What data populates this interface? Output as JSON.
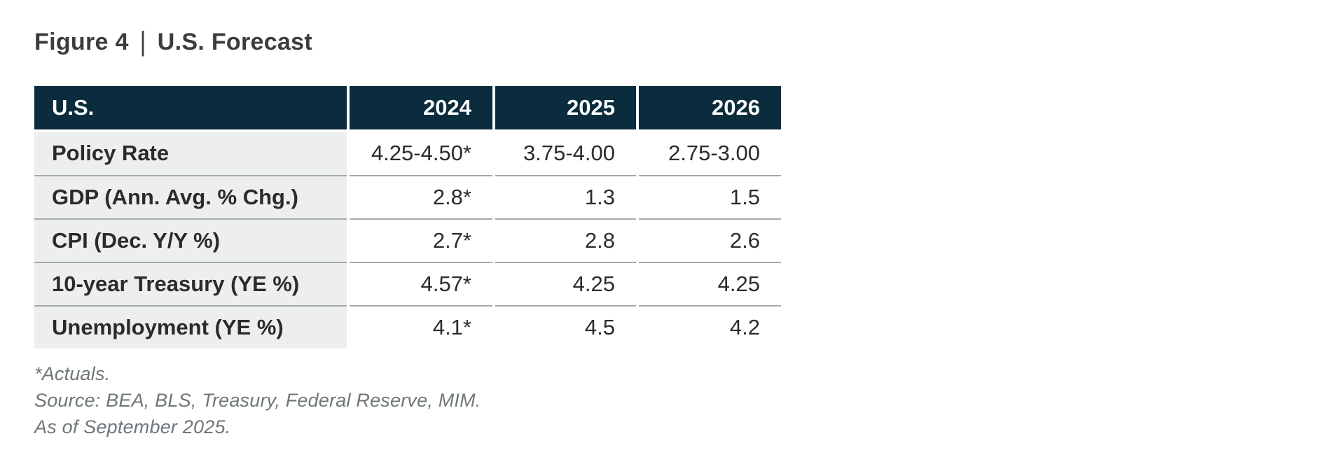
{
  "figure": {
    "label": "Figure 4",
    "separator": "|",
    "title": "U.S. Forecast"
  },
  "table": {
    "header": {
      "region": "U.S.",
      "years": [
        "2024",
        "2025",
        "2026"
      ]
    },
    "rows": [
      {
        "label": "Policy Rate",
        "values": [
          "4.25-4.50*",
          "3.75-4.00",
          "2.75-3.00"
        ]
      },
      {
        "label": "GDP (Ann. Avg. % Chg.)",
        "values": [
          "2.8*",
          "1.3",
          "1.5"
        ]
      },
      {
        "label": "CPI (Dec. Y/Y %)",
        "values": [
          "2.7*",
          "2.8",
          "2.6"
        ]
      },
      {
        "label": "10-year Treasury (YE %)",
        "values": [
          "4.57*",
          "4.25",
          "4.25"
        ]
      },
      {
        "label": "Unemployment (YE %)",
        "values": [
          "4.1*",
          "4.5",
          "4.2"
        ]
      }
    ]
  },
  "footnotes": {
    "actuals": "*Actuals.",
    "source": "Source: BEA, BLS, Treasury, Federal Reserve, MIM.",
    "as_of": "As of September 2025."
  },
  "chart_data": {
    "type": "table",
    "title": "Figure 4 | U.S. Forecast",
    "columns": [
      "U.S.",
      "2024",
      "2025",
      "2026"
    ],
    "rows": [
      [
        "Policy Rate",
        "4.25-4.50*",
        "3.75-4.00",
        "2.75-3.00"
      ],
      [
        "GDP (Ann. Avg. % Chg.)",
        "2.8*",
        "1.3",
        "1.5"
      ],
      [
        "CPI (Dec. Y/Y %)",
        "2.7*",
        "2.8",
        "2.6"
      ],
      [
        "10-year Treasury (YE %)",
        "4.57*",
        "4.25",
        "4.25"
      ],
      [
        "Unemployment (YE %)",
        "4.1*",
        "4.5",
        "4.2"
      ]
    ],
    "notes": [
      "*Actuals.",
      "Source: BEA, BLS, Treasury, Federal Reserve, MIM.",
      "As of September 2025."
    ]
  },
  "colors": {
    "header_bg": "#0A2C3D",
    "label_bg": "#EDEEEE",
    "separator": "#A4A9AB",
    "text": "#2B2B2B",
    "title": "#3C3C3C",
    "footnote": "#6E767A"
  }
}
